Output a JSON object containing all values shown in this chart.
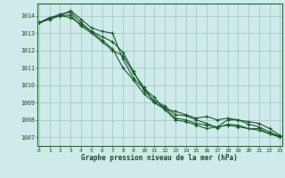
{
  "xlabel": "Graphe pression niveau de la mer (hPa)",
  "background_color": "#ceeaea",
  "grid_color": "#aacece",
  "line_color": "#1a5c28",
  "xlim": [
    -0.2,
    23.2
  ],
  "ylim": [
    1006.5,
    1014.7
  ],
  "yticks": [
    1007,
    1008,
    1009,
    1010,
    1011,
    1012,
    1013,
    1014
  ],
  "xticks": [
    0,
    1,
    2,
    3,
    4,
    5,
    6,
    7,
    8,
    9,
    10,
    11,
    12,
    13,
    14,
    15,
    16,
    17,
    18,
    19,
    20,
    21,
    22,
    23
  ],
  "series": [
    [
      1013.6,
      1013.8,
      1014.0,
      1014.3,
      1013.8,
      1013.3,
      1013.1,
      1013.0,
      1011.5,
      1010.4,
      1009.8,
      1009.3,
      1008.6,
      1008.5,
      1008.3,
      1008.1,
      1008.2,
      1008.0,
      1008.1,
      1008.0,
      1007.9,
      1007.8,
      1007.5,
      1007.1
    ],
    [
      1013.6,
      1013.85,
      1014.1,
      1014.2,
      1013.6,
      1013.1,
      1012.8,
      1012.5,
      1011.9,
      1010.8,
      1009.7,
      1009.1,
      1008.8,
      1008.3,
      1008.25,
      1008.0,
      1007.8,
      1007.55,
      1007.75,
      1007.7,
      1007.5,
      1007.5,
      1007.2,
      1007.05
    ],
    [
      1013.6,
      1013.9,
      1014.0,
      1013.9,
      1013.5,
      1013.1,
      1012.6,
      1012.1,
      1011.0,
      1010.3,
      1009.5,
      1009.0,
      1008.7,
      1008.1,
      1008.0,
      1007.8,
      1007.7,
      1007.6,
      1007.7,
      1007.6,
      1007.5,
      1007.4,
      1007.2,
      1007.0
    ],
    [
      1013.6,
      1013.8,
      1014.0,
      1014.05,
      1013.4,
      1013.0,
      1012.5,
      1012.0,
      1011.7,
      1010.7,
      1009.9,
      1009.0,
      1008.6,
      1008.0,
      1007.9,
      1007.7,
      1007.5,
      1007.6,
      1008.0,
      1008.0,
      1007.75,
      1007.6,
      1007.3,
      1007.05
    ]
  ]
}
